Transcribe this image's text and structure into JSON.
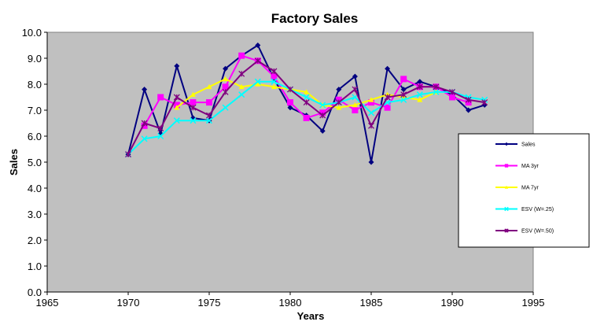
{
  "chart_data": {
    "type": "line",
    "title": "Factory Sales",
    "xlabel": "Years",
    "ylabel": "Sales",
    "xlim": [
      1965,
      1995
    ],
    "ylim": [
      0.0,
      10.0
    ],
    "x_ticks": [
      "1965",
      "1970",
      "1975",
      "1980",
      "1985",
      "1990",
      "1995"
    ],
    "y_ticks": [
      "0.0",
      "1.0",
      "2.0",
      "3.0",
      "4.0",
      "5.0",
      "6.0",
      "7.0",
      "8.0",
      "9.0",
      "10.0"
    ],
    "plot_background": "#c0c0c0",
    "grid": false,
    "legend_position": "right",
    "x": [
      1970,
      1971,
      1972,
      1973,
      1974,
      1975,
      1976,
      1977,
      1978,
      1979,
      1980,
      1981,
      1982,
      1983,
      1984,
      1985,
      1986,
      1987,
      1988,
      1989,
      1990,
      1991,
      1992
    ],
    "series": [
      {
        "name": "Sales",
        "color": "#000080",
        "marker": "diamond",
        "values": [
          5.3,
          7.8,
          6.1,
          8.7,
          6.7,
          6.6,
          8.6,
          9.1,
          9.5,
          8.2,
          7.1,
          6.8,
          6.2,
          7.8,
          8.3,
          5.0,
          8.6,
          7.8,
          8.1,
          7.9,
          7.6,
          7.0,
          7.2
        ]
      },
      {
        "name": "MA 3yr",
        "color": "#ff00ff",
        "marker": "square",
        "values": [
          null,
          6.4,
          7.5,
          7.2,
          7.3,
          7.3,
          7.9,
          9.1,
          8.9,
          8.3,
          7.3,
          6.7,
          6.9,
          7.4,
          7.0,
          7.3,
          7.1,
          8.2,
          7.9,
          7.9,
          7.5,
          7.3,
          null
        ]
      },
      {
        "name": "MA 7yr",
        "color": "#ffff00",
        "marker": "triangle",
        "values": [
          null,
          null,
          null,
          7.1,
          7.6,
          7.9,
          8.2,
          7.9,
          8.0,
          7.9,
          7.8,
          7.7,
          7.2,
          7.1,
          7.2,
          7.4,
          7.6,
          7.5,
          7.4,
          7.7,
          null,
          null,
          null
        ]
      },
      {
        "name": "ESV (W=.25)",
        "color": "#00ffff",
        "marker": "cross",
        "values": [
          5.3,
          5.9,
          6.0,
          6.6,
          6.6,
          6.6,
          7.1,
          7.6,
          8.1,
          8.1,
          7.8,
          7.5,
          7.2,
          7.3,
          7.5,
          6.9,
          7.3,
          7.4,
          7.6,
          7.7,
          7.7,
          7.5,
          7.4
        ]
      },
      {
        "name": "ESV (W=.50)",
        "color": "#800080",
        "marker": "star",
        "values": [
          5.3,
          6.5,
          6.3,
          7.5,
          7.1,
          6.8,
          7.7,
          8.4,
          8.9,
          8.5,
          7.8,
          7.3,
          6.8,
          7.3,
          7.8,
          6.4,
          7.5,
          7.6,
          7.9,
          7.9,
          7.7,
          7.4,
          7.3
        ]
      }
    ]
  }
}
